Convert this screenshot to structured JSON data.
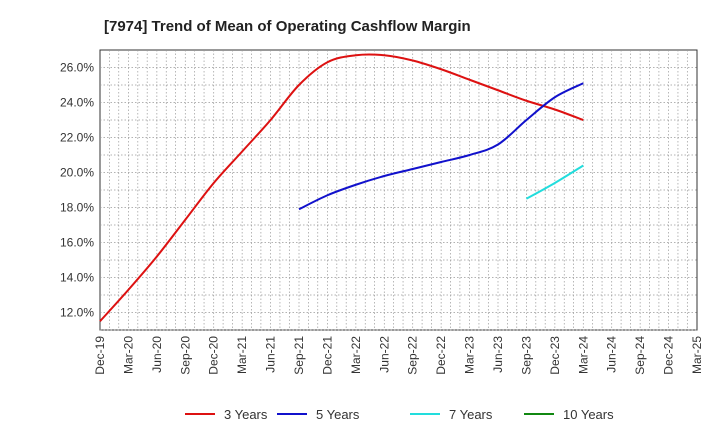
{
  "chart_data": {
    "type": "line",
    "title": "[7974]  Trend of Mean of Operating Cashflow Margin",
    "xlabel": "",
    "ylabel": "",
    "categories": [
      "Dec-19",
      "Mar-20",
      "Jun-20",
      "Sep-20",
      "Dec-20",
      "Mar-21",
      "Jun-21",
      "Sep-21",
      "Dec-21",
      "Mar-22",
      "Jun-22",
      "Sep-22",
      "Dec-22",
      "Mar-23",
      "Jun-23",
      "Sep-23",
      "Dec-23",
      "Mar-24",
      "Jun-24",
      "Sep-24",
      "Dec-24",
      "Mar-25"
    ],
    "ylim": [
      11.0,
      27.0
    ],
    "yticks": [
      12.0,
      14.0,
      16.0,
      18.0,
      20.0,
      22.0,
      24.0,
      26.0
    ],
    "ytick_labels": [
      "12.0%",
      "14.0%",
      "16.0%",
      "18.0%",
      "20.0%",
      "22.0%",
      "24.0%",
      "26.0%"
    ],
    "grid": true,
    "legend_position": "bottom",
    "series": [
      {
        "name": "3 Years",
        "color": "#dd1111",
        "values": [
          11.5,
          13.3,
          15.2,
          17.3,
          19.4,
          21.2,
          23.0,
          25.0,
          26.3,
          26.7,
          26.7,
          26.4,
          25.9,
          25.3,
          24.7,
          24.1,
          23.6,
          23.0,
          null,
          null,
          null,
          null
        ]
      },
      {
        "name": "5 Years",
        "color": "#1111cc",
        "values": [
          null,
          null,
          null,
          null,
          null,
          null,
          null,
          17.9,
          18.7,
          19.3,
          19.8,
          20.2,
          20.6,
          21.0,
          21.6,
          23.0,
          24.3,
          25.1,
          null,
          null,
          null,
          null
        ]
      },
      {
        "name": "7 Years",
        "color": "#22dddd",
        "values": [
          null,
          null,
          null,
          null,
          null,
          null,
          null,
          null,
          null,
          null,
          null,
          null,
          null,
          null,
          null,
          18.5,
          19.4,
          20.4,
          null,
          null,
          null,
          null
        ]
      },
      {
        "name": "10 Years",
        "color": "#118811",
        "values": [
          null,
          null,
          null,
          null,
          null,
          null,
          null,
          null,
          null,
          null,
          null,
          null,
          null,
          null,
          null,
          null,
          null,
          null,
          null,
          null,
          null,
          null
        ]
      }
    ]
  }
}
